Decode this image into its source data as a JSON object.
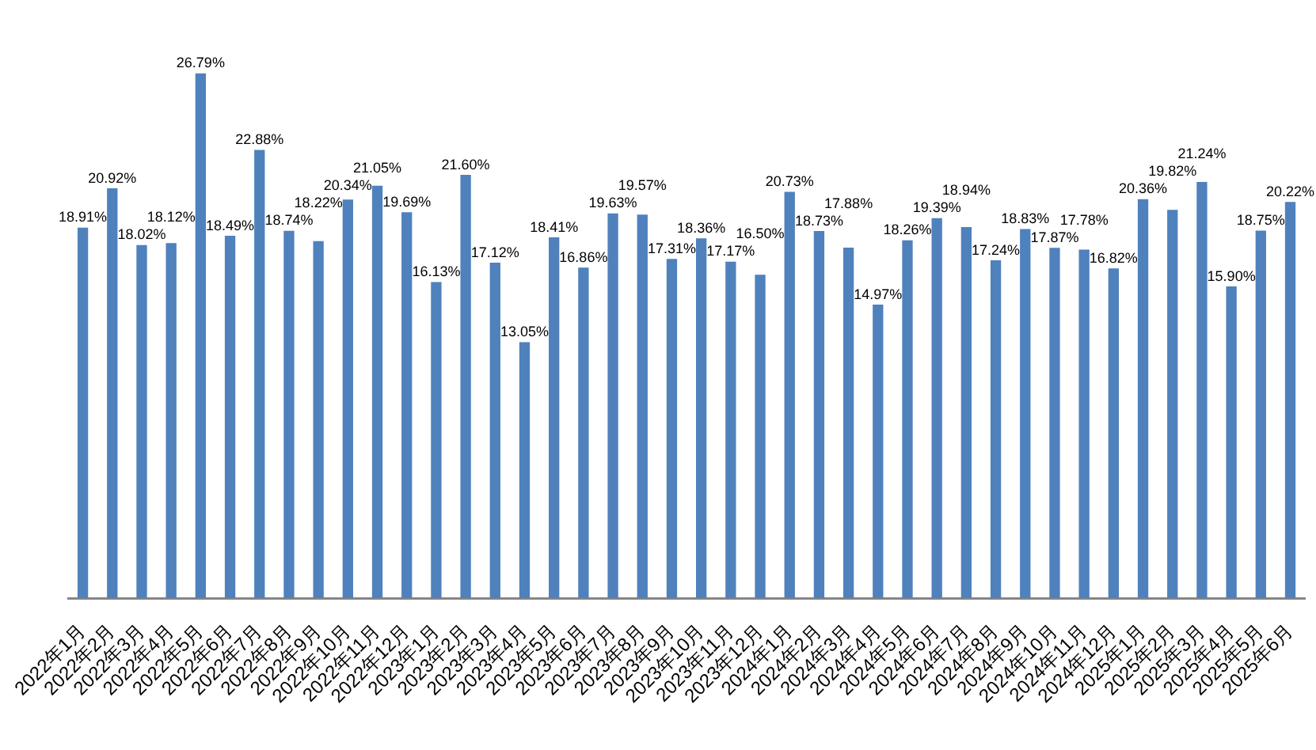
{
  "chart_data": {
    "type": "bar",
    "categories": [
      "2022年1月",
      "2022年2月",
      "2022年3月",
      "2022年4月",
      "2022年5月",
      "2022年6月",
      "2022年7月",
      "2022年8月",
      "2022年9月",
      "2022年10月",
      "2022年11月",
      "2022年12月",
      "2023年1月",
      "2023年2月",
      "2023年3月",
      "2023年4月",
      "2023年5月",
      "2023年6月",
      "2023年7月",
      "2023年8月",
      "2023年9月",
      "2023年10月",
      "2023年11月",
      "2023年12月",
      "2024年1月",
      "2024年2月",
      "2024年3月",
      "2024年4月",
      "2024年5月",
      "2024年6月",
      "2024年7月",
      "2024年8月",
      "2024年9月",
      "2024年10月",
      "2024年11月",
      "2024年12月",
      "2025年1月",
      "2025年2月",
      "2025年3月",
      "2025年4月",
      "2025年5月",
      "2025年6月"
    ],
    "values": [
      18.91,
      20.92,
      18.02,
      18.12,
      26.79,
      18.49,
      22.88,
      18.74,
      18.22,
      20.34,
      21.05,
      19.69,
      16.13,
      21.6,
      17.12,
      13.05,
      18.41,
      16.86,
      19.63,
      19.57,
      17.31,
      18.36,
      17.17,
      16.5,
      20.73,
      18.73,
      17.88,
      14.97,
      18.26,
      19.39,
      18.94,
      17.24,
      18.83,
      17.87,
      17.78,
      16.82,
      20.36,
      19.82,
      21.24,
      15.9,
      18.75,
      20.22
    ],
    "value_labels": [
      "18.91%",
      "20.92%",
      "18.02%",
      "18.12%",
      "26.79%",
      "18.49%",
      "22.88%",
      "18.74%",
      "18.22%",
      "20.34%",
      "21.05%",
      "19.69%",
      "16.13%",
      "21.60%",
      "17.12%",
      "13.05%",
      "18.41%",
      "16.86%",
      "19.63%",
      "19.57%",
      "17.31%",
      "18.36%",
      "17.17%",
      "16.50%",
      "20.73%",
      "18.73%",
      "17.88%",
      "14.97%",
      "18.26%",
      "19.39%",
      "18.94%",
      "17.24%",
      "18.83%",
      "17.87%",
      "17.78%",
      "16.82%",
      "20.36%",
      "19.82%",
      "21.24%",
      "15.90%",
      "18.75%",
      "20.22%"
    ],
    "color": "#4f81bd",
    "tick_labels": "x"
  }
}
